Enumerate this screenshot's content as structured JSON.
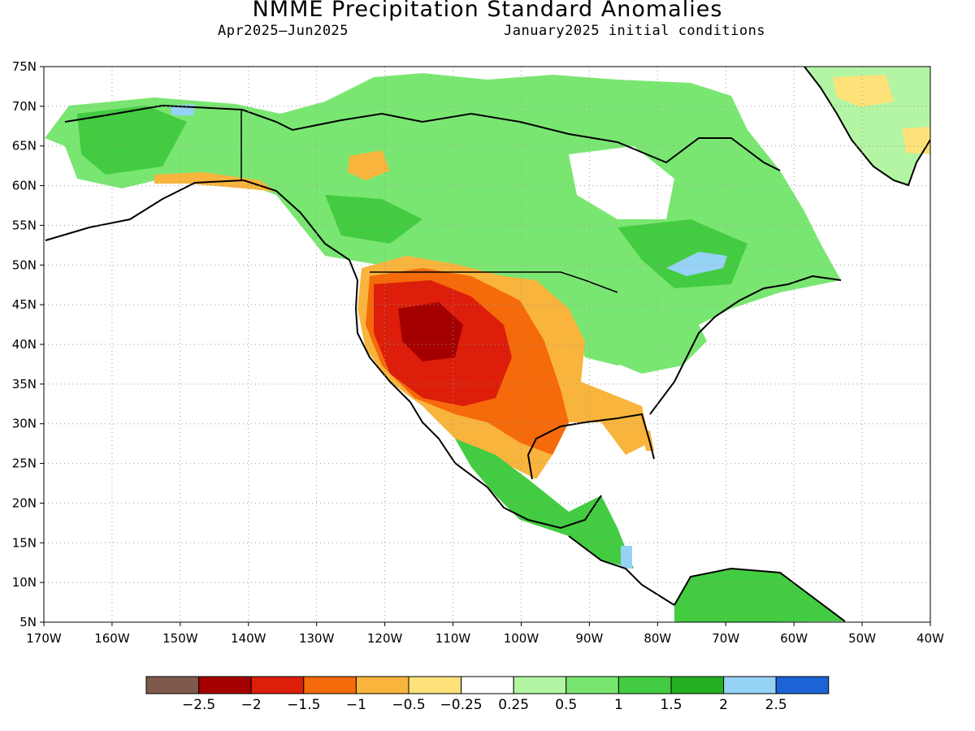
{
  "title": "NMME Precipitation Standard Anomalies",
  "subtitle_left": "Apr2025—Jun2025",
  "subtitle_right": "January2025 initial conditions",
  "lat_labels": [
    "75N",
    "70N",
    "65N",
    "60N",
    "55N",
    "50N",
    "45N",
    "40N",
    "35N",
    "30N",
    "25N",
    "20N",
    "15N",
    "10N",
    "5N"
  ],
  "lon_labels": [
    "170W",
    "160W",
    "150W",
    "140W",
    "130W",
    "120W",
    "110W",
    "100W",
    "90W",
    "80W",
    "70W",
    "60W",
    "50W",
    "40W"
  ],
  "colorbar": {
    "colors": [
      "#7f5a4c",
      "#a50000",
      "#dc1e0a",
      "#f56a0a",
      "#f8b43c",
      "#fde27a",
      "#ffffff",
      "#b3f5a3",
      "#7ae672",
      "#43cc41",
      "#22b021",
      "#96d2f5",
      "#1c64d6"
    ],
    "tick_labels": [
      "−2.5",
      "−2",
      "−1.5",
      "−1",
      "−0.5",
      "−0.25",
      "0.25",
      "0.5",
      "1",
      "1.5",
      "2",
      "2.5"
    ]
  },
  "colors": {
    "land_outline": "#000000",
    "grid": "#999999"
  }
}
